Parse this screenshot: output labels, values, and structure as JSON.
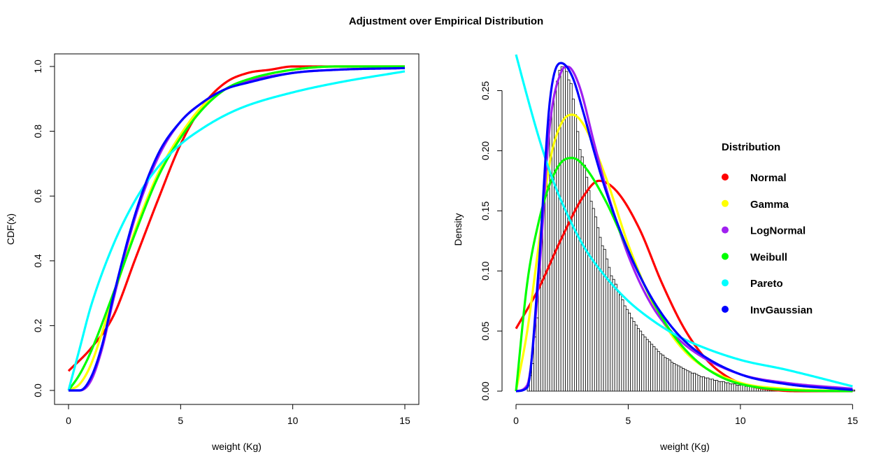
{
  "figure_title": "Adjustment over Empirical Distribution",
  "colors": {
    "Normal": "#ff0000",
    "Gamma": "#ffff00",
    "LogNormal": "#a020f0",
    "Weibull": "#00ff00",
    "Pareto": "#00ffff",
    "InvGaussian": "#0000ff",
    "histogram_border": "#000000",
    "histogram_fill": "#ffffff"
  },
  "chart_data": [
    {
      "type": "line",
      "xlabel": "weight (Kg)",
      "ylabel": "CDF(x)",
      "xlim": [
        0,
        15
      ],
      "ylim": [
        0,
        1
      ],
      "x_ticks": [
        "0",
        "5",
        "10",
        "15"
      ],
      "y_ticks": [
        "0.0",
        "0.2",
        "0.4",
        "0.6",
        "0.8",
        "1.0"
      ],
      "grid": false,
      "series": [
        {
          "name": "Normal",
          "x": [
            0,
            1,
            2,
            3,
            4,
            5,
            6,
            7,
            8,
            9,
            10,
            12,
            15
          ],
          "y": [
            0.06,
            0.13,
            0.23,
            0.41,
            0.59,
            0.76,
            0.88,
            0.95,
            0.98,
            0.99,
            1.0,
            1.0,
            1.0
          ]
        },
        {
          "name": "Gamma",
          "x": [
            0,
            0.5,
            1,
            2,
            3,
            4,
            5,
            6,
            7,
            8,
            10,
            12,
            15
          ],
          "y": [
            0.0,
            0.02,
            0.08,
            0.29,
            0.5,
            0.67,
            0.79,
            0.88,
            0.93,
            0.96,
            0.99,
            1.0,
            1.0
          ]
        },
        {
          "name": "LogNormal",
          "x": [
            0,
            0.5,
            1,
            1.5,
            2,
            3,
            4,
            5,
            6,
            7,
            8,
            10,
            12,
            15
          ],
          "y": [
            0.0,
            0.0,
            0.03,
            0.13,
            0.28,
            0.54,
            0.72,
            0.83,
            0.89,
            0.93,
            0.955,
            0.98,
            0.99,
            0.995
          ]
        },
        {
          "name": "Weibull",
          "x": [
            0,
            0.5,
            1,
            2,
            3,
            4,
            5,
            6,
            7,
            8,
            10,
            12,
            15
          ],
          "y": [
            0.0,
            0.05,
            0.12,
            0.3,
            0.49,
            0.66,
            0.78,
            0.87,
            0.93,
            0.96,
            0.99,
            1.0,
            1.0
          ]
        },
        {
          "name": "Pareto",
          "x": [
            0,
            0.5,
            1,
            2,
            3,
            4,
            5,
            6,
            7,
            8,
            10,
            12,
            15
          ],
          "y": [
            0.0,
            0.13,
            0.26,
            0.45,
            0.59,
            0.69,
            0.76,
            0.81,
            0.85,
            0.88,
            0.92,
            0.95,
            0.985
          ]
        },
        {
          "name": "InvGaussian",
          "x": [
            0,
            0.5,
            1,
            1.5,
            2,
            3,
            4,
            5,
            6,
            7,
            8,
            10,
            12,
            15
          ],
          "y": [
            0.0,
            0.0,
            0.04,
            0.14,
            0.29,
            0.55,
            0.73,
            0.83,
            0.89,
            0.93,
            0.95,
            0.98,
            0.99,
            0.995
          ]
        }
      ]
    },
    {
      "type": "bar",
      "subtype": "histogram_with_density_lines",
      "xlabel": "weight (Kg)",
      "ylabel": "Density",
      "xlim": [
        0,
        15.5
      ],
      "ylim": [
        0,
        0.28
      ],
      "x_ticks": [
        "0",
        "5",
        "10",
        "15"
      ],
      "y_ticks": [
        "0.00",
        "0.05",
        "0.10",
        "0.15",
        "0.20",
        "0.25"
      ],
      "grid": false,
      "histogram": {
        "bin_width": 0.1,
        "start": 0.5,
        "values": [
          0.005,
          0.013,
          0.023,
          0.045,
          0.061,
          0.094,
          0.126,
          0.161,
          0.185,
          0.209,
          0.226,
          0.239,
          0.249,
          0.258,
          0.267,
          0.27,
          0.269,
          0.266,
          0.259,
          0.256,
          0.243,
          0.23,
          0.216,
          0.201,
          0.195,
          0.188,
          0.178,
          0.167,
          0.158,
          0.152,
          0.145,
          0.136,
          0.128,
          0.121,
          0.118,
          0.11,
          0.103,
          0.096,
          0.093,
          0.089,
          0.083,
          0.08,
          0.076,
          0.071,
          0.068,
          0.065,
          0.061,
          0.058,
          0.055,
          0.052,
          0.05,
          0.047,
          0.045,
          0.043,
          0.041,
          0.039,
          0.037,
          0.035,
          0.033,
          0.031,
          0.03,
          0.028,
          0.027,
          0.026,
          0.024,
          0.023,
          0.022,
          0.021,
          0.02,
          0.019,
          0.018,
          0.017,
          0.016,
          0.015,
          0.015,
          0.014,
          0.013,
          0.012,
          0.012,
          0.011,
          0.011,
          0.01,
          0.01,
          0.009,
          0.009,
          0.008,
          0.008,
          0.008,
          0.007,
          0.007,
          0.006,
          0.006,
          0.006,
          0.005,
          0.005,
          0.005,
          0.005,
          0.004,
          0.004,
          0.004,
          0.004,
          0.003,
          0.003,
          0.003,
          0.003,
          0.003,
          0.003,
          0.002,
          0.002,
          0.002,
          0.002,
          0.002,
          0.002,
          0.002,
          0.002,
          0.002,
          0.001,
          0.001,
          0.001,
          0.001,
          0.001,
          0.001,
          0.001,
          0.001,
          0.001,
          0.001,
          0.001,
          0.001,
          0.001,
          0.001,
          0.001,
          0.001,
          0.001,
          0.001,
          0.001,
          0.001,
          0.001,
          0.001,
          0.001,
          0.001,
          0.001,
          0.001,
          0.001,
          0.001,
          0.001,
          0.001
        ]
      },
      "legend": {
        "title": "Distribution",
        "position": "right",
        "entries": [
          "Normal",
          "Gamma",
          "LogNormal",
          "Weibull",
          "Pareto",
          "InvGaussian"
        ]
      },
      "series": [
        {
          "name": "Normal",
          "x": [
            0,
            1,
            2,
            3,
            3.7,
            4.5,
            5.5,
            6.5,
            7.5,
            8.5,
            9.5,
            10.5,
            11.5,
            12.5,
            15
          ],
          "y": [
            0.052,
            0.085,
            0.126,
            0.162,
            0.175,
            0.166,
            0.135,
            0.09,
            0.052,
            0.026,
            0.011,
            0.004,
            0.001,
            0.0,
            0.0
          ]
        },
        {
          "name": "Gamma",
          "x": [
            0,
            0.5,
            1,
            1.5,
            2,
            2.5,
            3,
            4,
            5,
            6,
            7,
            8,
            10,
            12,
            15
          ],
          "y": [
            0.0,
            0.05,
            0.12,
            0.19,
            0.222,
            0.23,
            0.222,
            0.178,
            0.122,
            0.077,
            0.045,
            0.025,
            0.007,
            0.002,
            0.0
          ]
        },
        {
          "name": "LogNormal",
          "x": [
            0,
            0.5,
            1,
            1.5,
            2,
            2.3,
            2.8,
            3.5,
            4,
            5,
            6,
            7,
            8,
            10,
            12,
            15
          ],
          "y": [
            0.0,
            0.005,
            0.09,
            0.22,
            0.265,
            0.27,
            0.255,
            0.205,
            0.17,
            0.113,
            0.073,
            0.048,
            0.032,
            0.014,
            0.007,
            0.002
          ]
        },
        {
          "name": "Weibull",
          "x": [
            0,
            0.5,
            1,
            1.5,
            2,
            2.5,
            3,
            4,
            5,
            6,
            7,
            8,
            9,
            10,
            12,
            15
          ],
          "y": [
            0.0,
            0.09,
            0.14,
            0.172,
            0.19,
            0.194,
            0.188,
            0.158,
            0.117,
            0.078,
            0.047,
            0.026,
            0.013,
            0.006,
            0.001,
            0.0
          ]
        },
        {
          "name": "Pareto",
          "x": [
            0,
            0.5,
            1,
            1.5,
            2,
            3,
            4,
            5,
            6,
            7,
            8,
            10,
            12,
            15
          ],
          "y": [
            0.28,
            0.245,
            0.212,
            0.183,
            0.159,
            0.121,
            0.095,
            0.075,
            0.06,
            0.048,
            0.039,
            0.026,
            0.018,
            0.004
          ]
        },
        {
          "name": "InvGaussian",
          "x": [
            0,
            0.5,
            1,
            1.5,
            2,
            2.5,
            3,
            3.5,
            4,
            5,
            6,
            7,
            8,
            10,
            12,
            15
          ],
          "y": [
            0.0,
            0.003,
            0.1,
            0.24,
            0.273,
            0.262,
            0.232,
            0.198,
            0.167,
            0.117,
            0.079,
            0.052,
            0.034,
            0.014,
            0.006,
            0.001
          ]
        }
      ]
    }
  ]
}
